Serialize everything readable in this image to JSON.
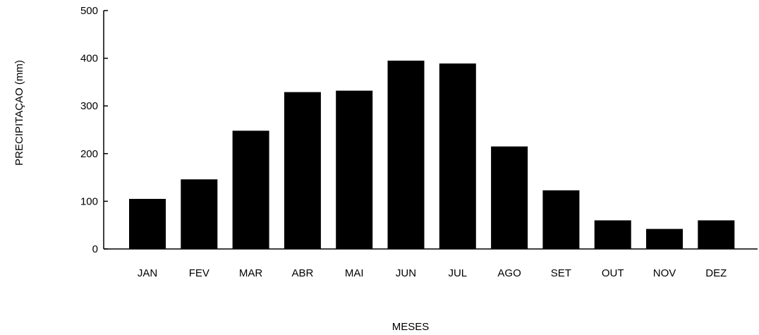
{
  "chart_data": {
    "type": "bar",
    "title": "",
    "xlabel": "MESES",
    "ylabel": "PRECIPITAÇAO (mm)",
    "categories": [
      "JAN",
      "FEV",
      "MAR",
      "ABR",
      "MAI",
      "JUN",
      "JUL",
      "AGO",
      "SET",
      "OUT",
      "NOV",
      "DEZ"
    ],
    "values": [
      105,
      146,
      248,
      329,
      332,
      395,
      389,
      215,
      123,
      60,
      42,
      60
    ],
    "ylim": [
      0,
      500
    ],
    "yticks": [
      "0",
      "100",
      "200",
      "300",
      "400",
      "500"
    ],
    "grid": false,
    "legend": "none",
    "bar_color": "#000000",
    "axis_color": "#000000"
  }
}
